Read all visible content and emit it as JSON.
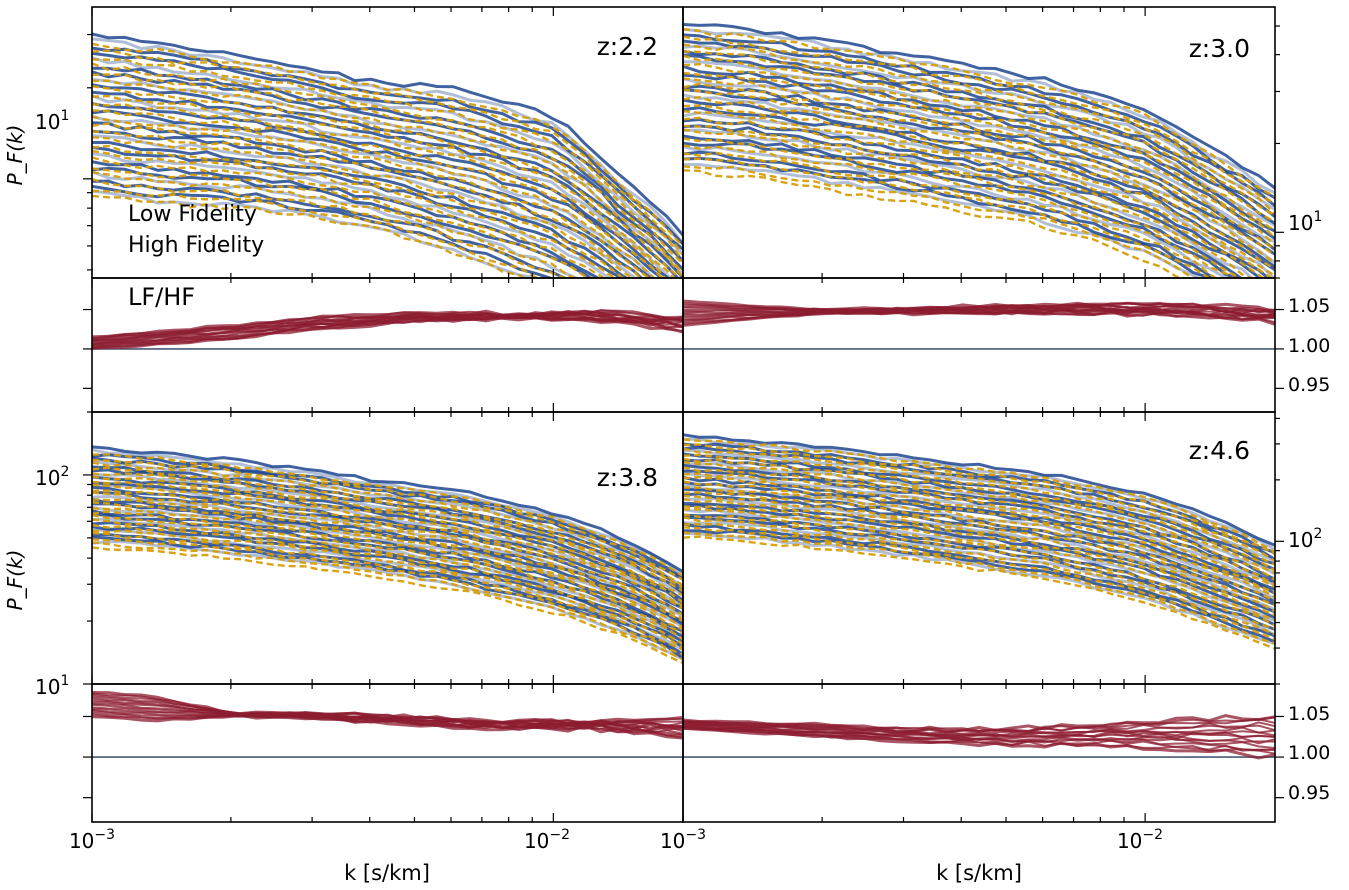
{
  "figure": {
    "ylabel": "P_F(k)",
    "xlabel": "k [s/km]",
    "legend": {
      "low": "Low Fidelity",
      "high": "High Fidelity",
      "ratio": "LF/HF"
    },
    "tick_labels": {
      "x": {
        "k1e3": "10",
        "k1e3_exp": "−3",
        "k1e2": "10",
        "k1e2_exp": "−2"
      },
      "y": {
        "p10": "10",
        "p10_exp": "1",
        "p100": "10",
        "p100_exp": "2"
      },
      "ratio": {
        "r105": "1.05",
        "r100": "1.00",
        "r095": "0.95"
      }
    }
  },
  "chart_data": [
    {
      "type": "line",
      "panel": "z:2.2",
      "xlabel": "",
      "ylabel": "P_F(k)",
      "xscale": "log",
      "yscale": "log",
      "xlim": [
        0.001,
        0.0191
      ],
      "ylim": [
        4.7,
        37
      ],
      "grid": false,
      "legend_position": "lower-left",
      "bands": [
        {
          "name": "Low Fidelity",
          "color": "#1f4690",
          "x": [
            0.001,
            0.00135,
            0.002,
            0.003,
            0.004,
            0.006,
            0.01,
            0.014,
            0.0191
          ],
          "upper": [
            30,
            28.5,
            26,
            23,
            21,
            20,
            16,
            10,
            6.5
          ],
          "lower": [
            9.0,
            8.5,
            8.2,
            7.6,
            7.0,
            5.8,
            4.4,
            3.5,
            2.3
          ]
        },
        {
          "name": "High Fidelity",
          "color": "#d69e08",
          "x": [
            0.001,
            0.00135,
            0.002,
            0.003,
            0.004,
            0.006,
            0.01,
            0.014,
            0.0191
          ],
          "upper": [
            28,
            26.5,
            24.5,
            22,
            20.5,
            18.5,
            15,
            9.5,
            6.0
          ],
          "lower": [
            8.8,
            8.3,
            8.1,
            7.5,
            6.9,
            5.7,
            4.3,
            3.4,
            2.2
          ]
        }
      ]
    },
    {
      "type": "line",
      "panel": "LF/HF z:2.2",
      "ylabel": "LF/HF",
      "xscale": "log",
      "xlim": [
        0.001,
        0.0191
      ],
      "ylim": [
        0.92,
        1.09
      ],
      "reference_line": 1.0,
      "series": [
        {
          "name": "LF/HF",
          "color": "#8c1c30",
          "x": [
            0.001,
            0.002,
            0.003,
            0.005,
            0.008,
            0.012,
            0.0191
          ],
          "upper": [
            1.015,
            1.03,
            1.04,
            1.045,
            1.045,
            1.048,
            1.04
          ],
          "lower": [
            1.0,
            1.012,
            1.025,
            1.035,
            1.038,
            1.038,
            1.025
          ]
        }
      ]
    },
    {
      "type": "line",
      "panel": "z:3.0",
      "xscale": "log",
      "yscale": "log",
      "xlim": [
        0.001,
        0.0191
      ],
      "ylim": [
        7.0,
        58
      ],
      "bands": [
        {
          "name": "Low Fidelity",
          "color": "#1f4690",
          "x": [
            0.001,
            0.00135,
            0.002,
            0.003,
            0.004,
            0.006,
            0.01,
            0.014,
            0.0191
          ],
          "upper": [
            51,
            49,
            45,
            40,
            37,
            33,
            26,
            19,
            14
          ],
          "lower": [
            17,
            16.5,
            15,
            13.5,
            12.5,
            11,
            8.5,
            6.5,
            4.8
          ]
        },
        {
          "name": "High Fidelity",
          "color": "#d69e08",
          "x": [
            0.001,
            0.00135,
            0.002,
            0.003,
            0.004,
            0.006,
            0.01,
            0.014,
            0.0191
          ],
          "upper": [
            48,
            46,
            42,
            38,
            35,
            31,
            25,
            18,
            13
          ],
          "lower": [
            16,
            15.5,
            14,
            12.8,
            11.8,
            10.5,
            8.1,
            6.2,
            4.5
          ]
        }
      ]
    },
    {
      "type": "line",
      "panel": "LF/HF z:3.0",
      "xscale": "log",
      "xlim": [
        0.001,
        0.0191
      ],
      "ylim": [
        0.92,
        1.09
      ],
      "reference_line": 1.0,
      "series": [
        {
          "name": "LF/HF",
          "color": "#8c1c30",
          "x": [
            0.001,
            0.002,
            0.003,
            0.005,
            0.008,
            0.012,
            0.0191
          ],
          "upper": [
            1.06,
            1.05,
            1.052,
            1.055,
            1.056,
            1.058,
            1.05
          ],
          "lower": [
            1.03,
            1.045,
            1.045,
            1.045,
            1.045,
            1.042,
            1.035
          ]
        }
      ]
    },
    {
      "type": "line",
      "panel": "z:3.8",
      "xlabel": "",
      "ylabel": "P_F(k)",
      "xscale": "log",
      "yscale": "log",
      "xlim": [
        0.001,
        0.0191
      ],
      "ylim": [
        10,
        200
      ],
      "bands": [
        {
          "name": "Low Fidelity",
          "color": "#1f4690",
          "x": [
            0.001,
            0.00135,
            0.002,
            0.003,
            0.004,
            0.006,
            0.01,
            0.014,
            0.0191
          ],
          "upper": [
            135,
            128,
            118,
            105,
            95,
            85,
            66,
            50,
            35
          ],
          "lower": [
            48,
            46,
            42,
            38,
            35,
            30,
            23,
            18,
            13
          ]
        },
        {
          "name": "High Fidelity",
          "color": "#d69e08",
          "x": [
            0.001,
            0.00135,
            0.002,
            0.003,
            0.004,
            0.006,
            0.01,
            0.014,
            0.0191
          ],
          "upper": [
            125,
            120,
            110,
            98,
            89,
            80,
            62,
            47,
            33
          ],
          "lower": [
            45,
            43,
            40,
            36,
            33,
            28.5,
            22,
            17,
            12.5
          ]
        }
      ]
    },
    {
      "type": "line",
      "panel": "LF/HF z:3.8",
      "xscale": "log",
      "xlim": [
        0.001,
        0.0191
      ],
      "ylim": [
        0.92,
        1.09
      ],
      "reference_line": 1.0,
      "series": [
        {
          "name": "LF/HF",
          "color": "#8c1c30",
          "x": [
            0.001,
            0.00135,
            0.002,
            0.003,
            0.005,
            0.008,
            0.012,
            0.0191
          ],
          "upper": [
            1.08,
            1.075,
            1.055,
            1.055,
            1.05,
            1.045,
            1.045,
            1.045
          ],
          "lower": [
            1.05,
            1.045,
            1.05,
            1.048,
            1.04,
            1.035,
            1.035,
            1.025
          ]
        }
      ]
    },
    {
      "type": "line",
      "panel": "z:4.6",
      "xscale": "log",
      "yscale": "log",
      "xlim": [
        0.001,
        0.0191
      ],
      "ylim": [
        20,
        430
      ],
      "bands": [
        {
          "name": "Low Fidelity",
          "color": "#1f4690",
          "x": [
            0.001,
            0.00135,
            0.002,
            0.003,
            0.004,
            0.006,
            0.01,
            0.014,
            0.0191
          ],
          "upper": [
            330,
            315,
            290,
            260,
            240,
            215,
            170,
            130,
            95
          ],
          "lower": [
            110,
            105,
            96,
            86,
            78,
            68,
            52,
            40,
            31
          ]
        },
        {
          "name": "High Fidelity",
          "color": "#d69e08",
          "x": [
            0.001,
            0.00135,
            0.002,
            0.003,
            0.004,
            0.006,
            0.01,
            0.014,
            0.0191
          ],
          "upper": [
            310,
            300,
            275,
            248,
            230,
            205,
            163,
            125,
            90
          ],
          "lower": [
            105,
            100,
            92,
            83,
            75,
            66,
            50,
            38.5,
            30
          ]
        }
      ]
    },
    {
      "type": "line",
      "panel": "LF/HF z:4.6",
      "xscale": "log",
      "xlim": [
        0.001,
        0.0191
      ],
      "ylim": [
        0.92,
        1.09
      ],
      "reference_line": 1.0,
      "series": [
        {
          "name": "LF/HF",
          "color": "#8c1c30",
          "x": [
            0.001,
            0.002,
            0.003,
            0.005,
            0.008,
            0.012,
            0.0191
          ],
          "upper": [
            1.045,
            1.04,
            1.035,
            1.035,
            1.04,
            1.045,
            1.05
          ],
          "lower": [
            1.035,
            1.025,
            1.02,
            1.015,
            1.015,
            1.01,
            1.0
          ]
        }
      ]
    }
  ]
}
